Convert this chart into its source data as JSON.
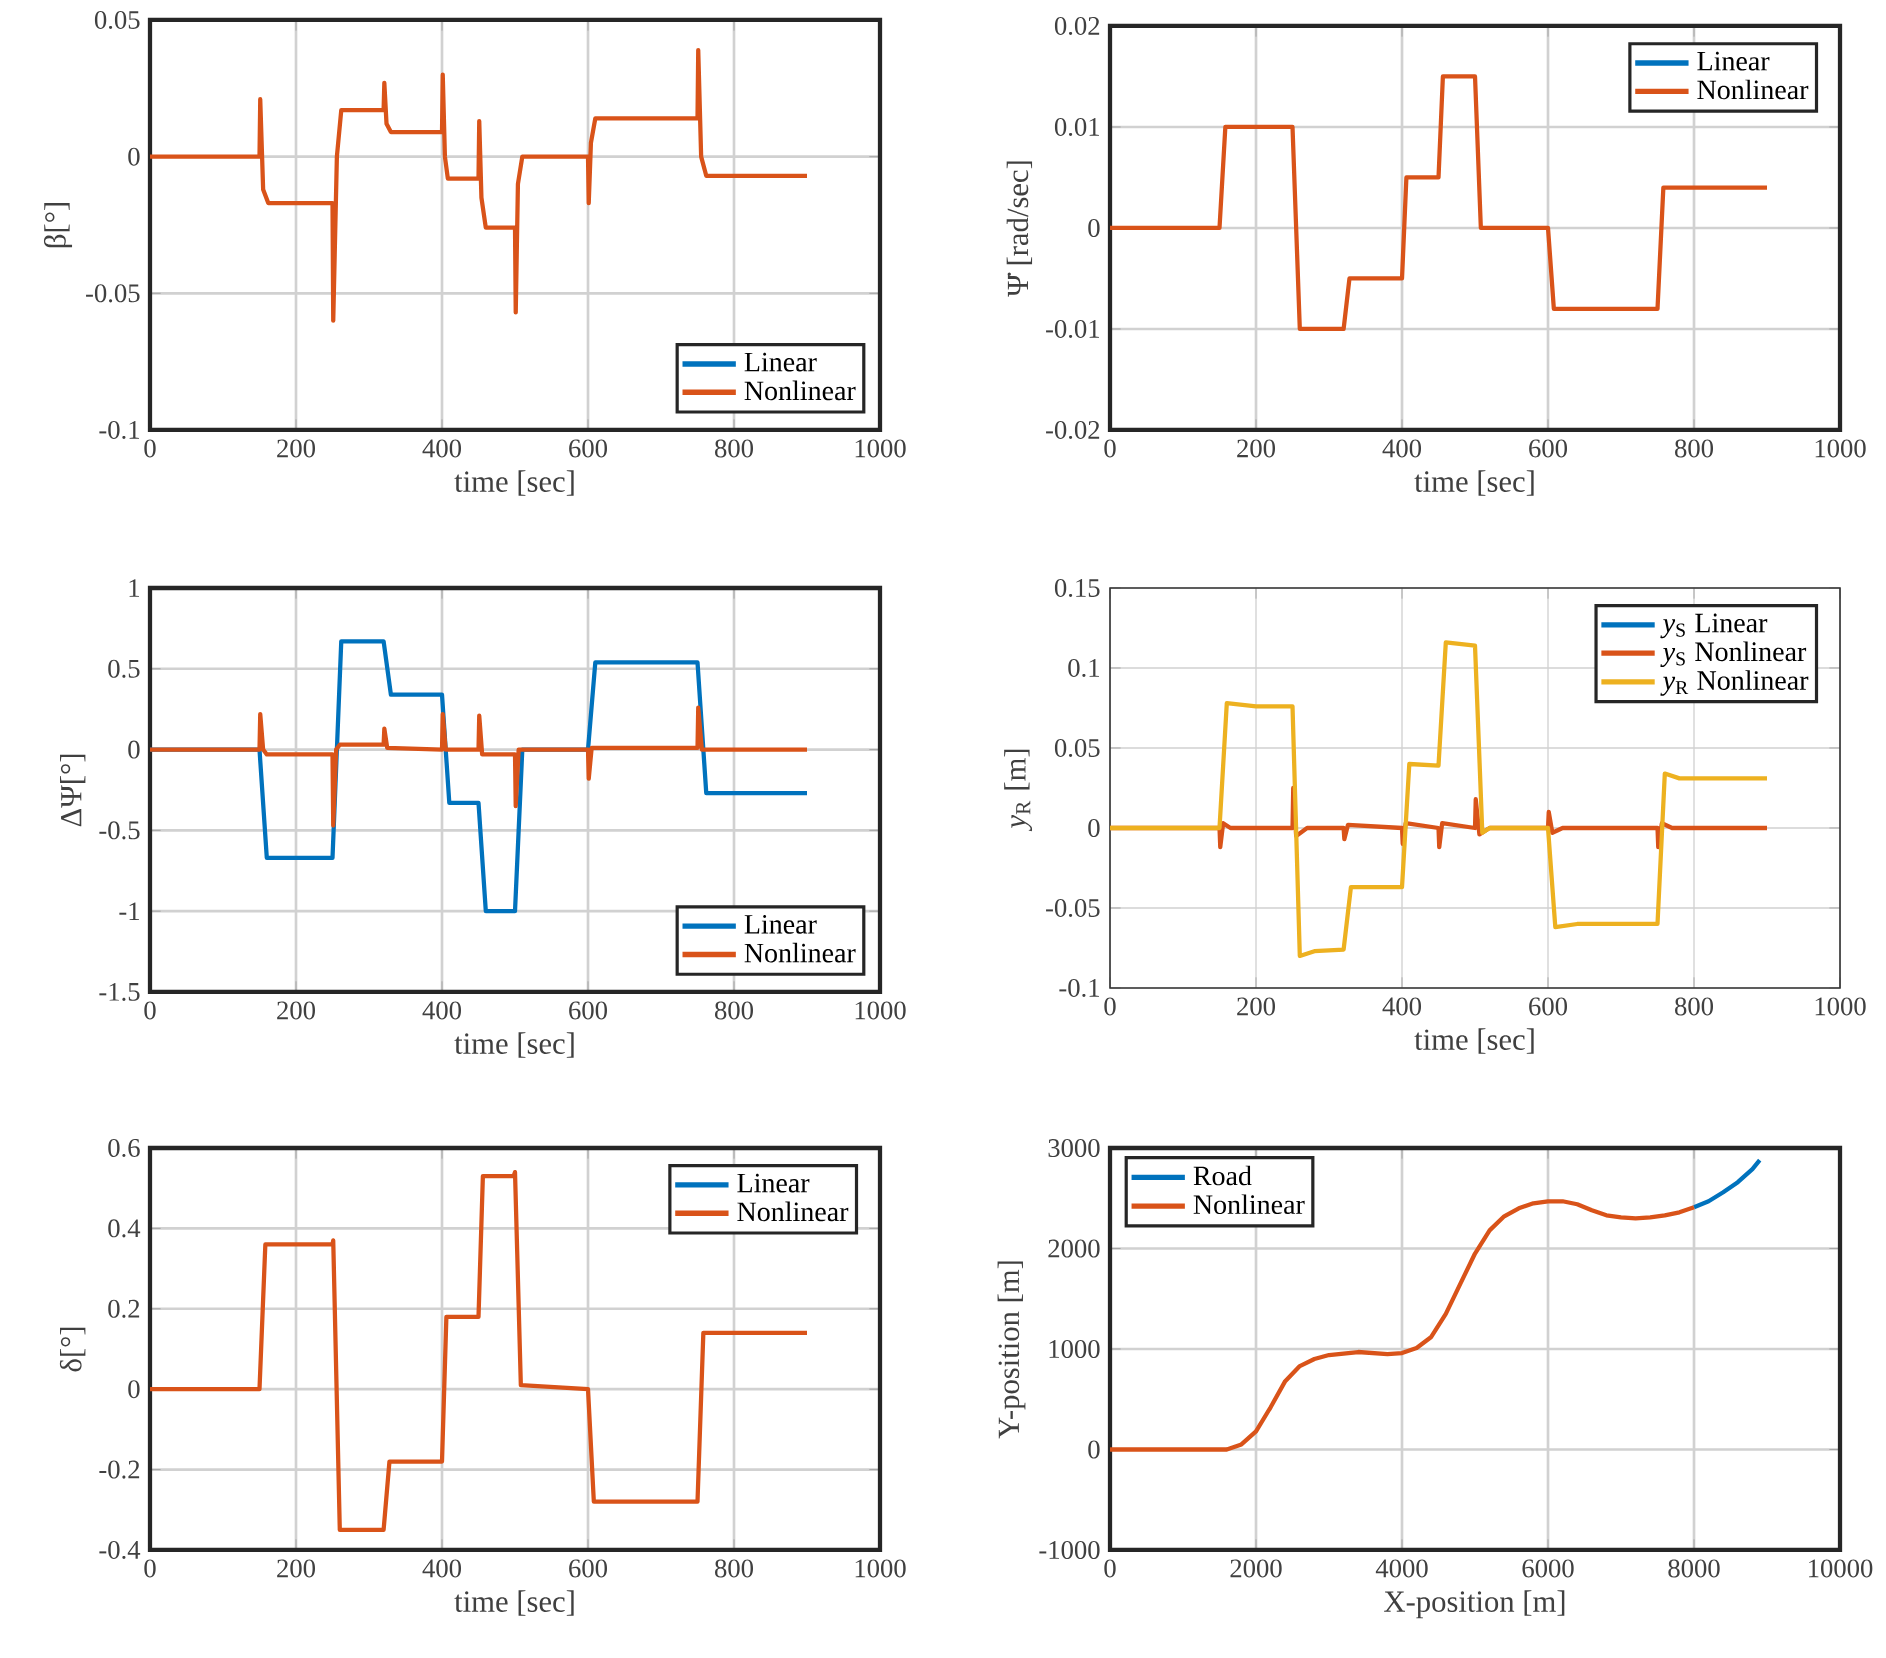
{
  "chart_data": [
    {
      "type": "line",
      "xlabel": "time [sec]",
      "ylabel": "β[°]",
      "xlim": [
        0,
        1000
      ],
      "ylim": [
        -0.1,
        0.05
      ],
      "xticks": [
        0,
        200,
        400,
        600,
        800,
        1000
      ],
      "yticks": [
        -0.1,
        -0.05,
        0,
        0.05
      ],
      "grid": true,
      "legend": "bottom right",
      "line_style": "solid",
      "series": [
        {
          "name": "Linear",
          "color": "#0072bd"
        },
        {
          "name": "Nonlinear",
          "color": "#d95319",
          "x": [
            0,
            150,
            151,
            155,
            162,
            250,
            251,
            256,
            262,
            320,
            321,
            324,
            330,
            400,
            401,
            404,
            408,
            450,
            451,
            454,
            460,
            500,
            501,
            504,
            510,
            600,
            601,
            604,
            610,
            750,
            751,
            755,
            762,
            900
          ],
          "values": [
            0,
            0,
            0.021,
            -0.012,
            -0.017,
            -0.017,
            -0.06,
            0.0,
            0.017,
            0.017,
            0.027,
            0.012,
            0.009,
            0.009,
            0.03,
            0.0,
            -0.008,
            -0.008,
            0.013,
            -0.015,
            -0.026,
            -0.026,
            -0.057,
            -0.01,
            0,
            0,
            -0.017,
            0.005,
            0.014,
            0.014,
            0.039,
            0,
            -0.007,
            -0.007
          ]
        }
      ]
    },
    {
      "type": "line",
      "xlabel": "time [sec]",
      "ylabel": "Ψ̇ [rad/sec]",
      "xlim": [
        0,
        1000
      ],
      "ylim": [
        -0.02,
        0.02
      ],
      "xticks": [
        0,
        200,
        400,
        600,
        800,
        1000
      ],
      "yticks": [
        -0.02,
        -0.01,
        0,
        0.01,
        0.02
      ],
      "grid": true,
      "legend": "top right",
      "line_style": "solid",
      "series": [
        {
          "name": "Linear",
          "color": "#0072bd"
        },
        {
          "name": "Nonlinear",
          "color": "#d95319",
          "x": [
            0,
            150,
            158,
            250,
            260,
            320,
            328,
            400,
            406,
            450,
            456,
            500,
            508,
            600,
            608,
            750,
            758,
            900
          ],
          "values": [
            0,
            0,
            0.01,
            0.01,
            -0.01,
            -0.01,
            -0.005,
            -0.005,
            0.005,
            0.005,
            0.015,
            0.015,
            0,
            0,
            -0.008,
            -0.008,
            0.004,
            0.004
          ]
        }
      ]
    },
    {
      "type": "line",
      "xlabel": "time [sec]",
      "ylabel": "ΔΨ[°]",
      "xlim": [
        0,
        1000
      ],
      "ylim": [
        -1.5,
        1
      ],
      "xticks": [
        0,
        200,
        400,
        600,
        800,
        1000
      ],
      "yticks": [
        -1.5,
        -1,
        -0.5,
        0,
        0.5,
        1
      ],
      "grid": true,
      "legend": "bottom right",
      "line_style": "solid",
      "series": [
        {
          "name": "Linear",
          "color": "#0072bd",
          "x": [
            0,
            150,
            160,
            250,
            262,
            320,
            330,
            400,
            410,
            450,
            460,
            500,
            510,
            600,
            610,
            750,
            762,
            900
          ],
          "values": [
            0,
            0,
            -0.67,
            -0.67,
            0.67,
            0.67,
            0.34,
            0.34,
            -0.33,
            -0.33,
            -1.0,
            -1.0,
            0,
            0,
            0.54,
            0.54,
            -0.27,
            -0.27
          ]
        },
        {
          "name": "Nonlinear",
          "color": "#d95319",
          "x": [
            0,
            150,
            151,
            155,
            160,
            250,
            251,
            255,
            260,
            320,
            321,
            325,
            400,
            401,
            405,
            450,
            451,
            455,
            500,
            501,
            505,
            600,
            601,
            605,
            750,
            751,
            756,
            900
          ],
          "values": [
            0,
            0,
            0.22,
            0,
            -0.03,
            -0.03,
            -0.47,
            0,
            0.03,
            0.03,
            0.13,
            0.01,
            0,
            0.22,
            0,
            0,
            0.21,
            -0.03,
            -0.03,
            -0.35,
            0,
            0,
            -0.18,
            0.01,
            0.01,
            0.26,
            0,
            0
          ]
        }
      ]
    },
    {
      "type": "line",
      "xlabel": "time [sec]",
      "ylabel": "*y*$_{R}$ [m]",
      "xlim": [
        0,
        1000
      ],
      "ylim": [
        -0.1,
        0.15
      ],
      "xticks": [
        0,
        200,
        400,
        600,
        800,
        1000
      ],
      "yticks": [
        -0.1,
        -0.05,
        0,
        0.05,
        0.1,
        0.15
      ],
      "grid": true,
      "legend": "top right",
      "line_style": "solid",
      "series": [
        {
          "name": "*y*$_{S}$ Linear",
          "color": "#0072bd"
        },
        {
          "name": "*y*$_{S}$ Nonlinear",
          "color": "#d95319",
          "x": [
            0,
            150,
            151,
            155,
            165,
            250,
            251,
            255,
            270,
            320,
            321,
            326,
            400,
            401,
            405,
            450,
            451,
            455,
            500,
            501,
            506,
            520,
            600,
            601,
            606,
            620,
            750,
            751,
            756,
            770,
            900
          ],
          "values": [
            0,
            0,
            -0.012,
            0.003,
            0,
            0,
            0.025,
            -0.005,
            0,
            0,
            -0.007,
            0.002,
            0,
            -0.01,
            0.003,
            0,
            -0.012,
            0.003,
            0,
            0.018,
            -0.004,
            0,
            0,
            0.01,
            -0.003,
            0,
            0,
            -0.012,
            0.003,
            0,
            0
          ]
        },
        {
          "name": "*y*$_{R}$ Nonlinear",
          "color": "#edb120",
          "x": [
            0,
            150,
            160,
            200,
            250,
            260,
            280,
            320,
            330,
            400,
            410,
            450,
            460,
            500,
            510,
            520,
            600,
            610,
            640,
            750,
            760,
            780,
            900
          ],
          "values": [
            0,
            0,
            0.078,
            0.076,
            0.076,
            -0.08,
            -0.077,
            -0.076,
            -0.037,
            -0.037,
            0.04,
            0.039,
            0.116,
            0.114,
            -0.003,
            0,
            0,
            -0.062,
            -0.06,
            -0.06,
            0.034,
            0.031,
            0.031
          ]
        }
      ]
    },
    {
      "type": "line",
      "xlabel": "time [sec]",
      "ylabel": "δ[°]",
      "xlim": [
        0,
        1000
      ],
      "ylim": [
        -0.4,
        0.6
      ],
      "xticks": [
        0,
        200,
        400,
        600,
        800,
        1000
      ],
      "yticks": [
        -0.4,
        -0.2,
        0,
        0.2,
        0.4,
        0.6
      ],
      "grid": true,
      "legend": "top right",
      "line_style": "solid",
      "series": [
        {
          "name": "Linear",
          "color": "#0072bd"
        },
        {
          "name": "Nonlinear",
          "color": "#d95319",
          "x": [
            0,
            150,
            158,
            250,
            251,
            260,
            320,
            328,
            400,
            406,
            450,
            456,
            498,
            500,
            508,
            600,
            608,
            750,
            758,
            900
          ],
          "values": [
            0,
            0,
            0.36,
            0.36,
            0.37,
            -0.35,
            -0.35,
            -0.18,
            -0.18,
            0.18,
            0.18,
            0.53,
            0.53,
            0.54,
            0.01,
            0,
            -0.28,
            -0.28,
            0.14,
            0.14
          ]
        }
      ]
    },
    {
      "type": "line",
      "xlabel": "X-position [m]",
      "ylabel": "Y-position [m]",
      "xlim": [
        0,
        10000
      ],
      "ylim": [
        -1000,
        3000
      ],
      "xticks": [
        0,
        2000,
        4000,
        6000,
        8000,
        10000
      ],
      "yticks": [
        -1000,
        0,
        1000,
        2000,
        3000
      ],
      "grid": true,
      "legend": "top left",
      "line_style": "solid",
      "series": [
        {
          "name": "Road",
          "color": "#0072bd",
          "x": [
            8000,
            8200,
            8400,
            8600,
            8800,
            8900
          ],
          "values": [
            2410,
            2470,
            2560,
            2660,
            2790,
            2880
          ]
        },
        {
          "name": "Nonlinear",
          "color": "#d95319",
          "x": [
            0,
            1000,
            1600,
            1800,
            2000,
            2200,
            2400,
            2600,
            2800,
            3000,
            3400,
            3800,
            4000,
            4200,
            4400,
            4600,
            4800,
            5000,
            5200,
            5400,
            5600,
            5800,
            6000,
            6200,
            6400,
            6600,
            6800,
            7000,
            7200,
            7400,
            7600,
            7800,
            8000
          ],
          "values": [
            0,
            0,
            0,
            50,
            180,
            420,
            680,
            830,
            900,
            940,
            970,
            950,
            960,
            1010,
            1120,
            1350,
            1650,
            1950,
            2180,
            2320,
            2400,
            2450,
            2470,
            2470,
            2440,
            2380,
            2330,
            2310,
            2300,
            2310,
            2330,
            2360,
            2410
          ]
        }
      ]
    }
  ]
}
